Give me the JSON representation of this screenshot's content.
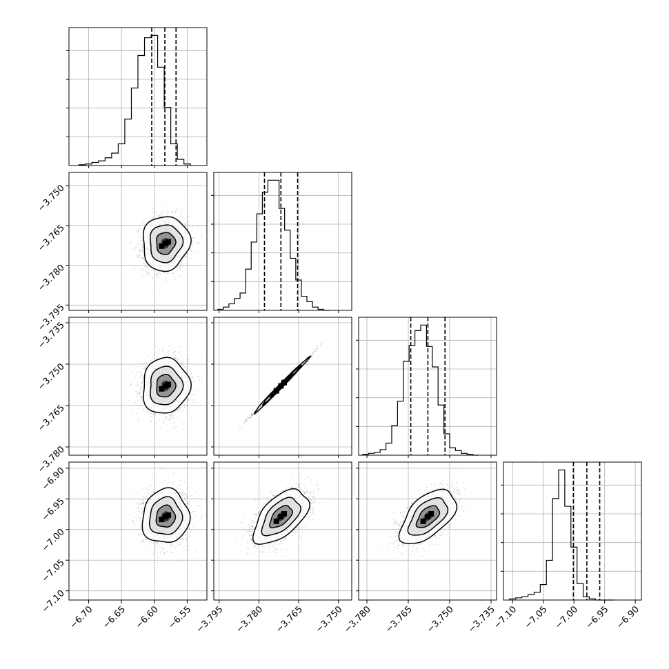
{
  "chart_data": {
    "type": "scatter",
    "subtype": "corner-plot",
    "grid": true,
    "parameters": [
      {
        "range": [
          -6.73,
          -6.52
        ],
        "ticks": [
          "-6.70",
          "-6.65",
          "-6.60",
          "-6.55"
        ],
        "quantiles": [
          -6.604,
          -6.584,
          -6.567
        ]
      },
      {
        "range": [
          -3.797,
          -3.745
        ],
        "ticks": [
          "-3.795",
          "-3.780",
          "-3.765",
          "-3.750"
        ],
        "quantiles": [
          -3.7779,
          -3.7717,
          -3.7654
        ]
      },
      {
        "range": [
          -3.783,
          -3.733
        ],
        "ticks": [
          "-3.780",
          "-3.765",
          "-3.750",
          "-3.735"
        ],
        "quantiles": [
          -3.7641,
          -3.7579,
          -3.7517
        ]
      },
      {
        "range": [
          -7.115,
          -6.89
        ],
        "ticks": [
          "-7.10",
          "-7.05",
          "-7.00",
          "-6.95",
          "-6.90"
        ],
        "quantiles": [
          -7.001,
          -6.979,
          -6.958
        ]
      }
    ],
    "histograms": [
      {
        "bin_start": -6.715,
        "bin_width": 0.01,
        "counts": [
          1,
          2,
          4,
          6,
          10,
          16,
          28,
          60,
          100,
          142,
          165,
          168,
          127,
          75,
          28,
          8,
          2
        ]
      },
      {
        "bin_start": -3.7955,
        "bin_width": 0.0021,
        "counts": [
          1,
          3,
          6,
          11,
          16,
          38,
          63,
          89,
          109,
          120,
          120,
          94,
          74,
          48,
          28,
          13,
          8,
          3,
          1,
          0
        ]
      },
      {
        "bin_start": -3.7815,
        "bin_width": 0.0021,
        "counts": [
          1,
          2,
          3,
          6,
          13,
          32,
          58,
          101,
          118,
          134,
          140,
          117,
          95,
          54,
          23,
          8,
          5,
          2,
          1,
          0
        ]
      },
      {
        "bin_start": -7.105,
        "bin_width": 0.01,
        "counts": [
          1,
          2,
          3,
          5,
          7,
          14,
          36,
          92,
          118,
          85,
          48,
          15,
          3,
          1,
          0,
          0,
          0
        ]
      }
    ],
    "pairs": [
      {
        "x": 0,
        "y": 1,
        "center": [
          -6.583,
          -3.7717
        ],
        "sd": [
          0.017,
          0.0049
        ],
        "rho": 0.05
      },
      {
        "x": 0,
        "y": 2,
        "center": [
          -6.583,
          -3.7579
        ],
        "sd": [
          0.017,
          0.0048
        ],
        "rho": 0.05
      },
      {
        "x": 0,
        "y": 3,
        "center": [
          -6.583,
          -6.979
        ],
        "sd": [
          0.017,
          0.021
        ],
        "rho": 0.05
      },
      {
        "x": 1,
        "y": 2,
        "center": [
          -3.7717,
          -3.7579
        ],
        "sd": [
          0.0049,
          0.0048
        ],
        "rho": 0.995
      },
      {
        "x": 1,
        "y": 3,
        "center": [
          -3.7717,
          -6.979
        ],
        "sd": [
          0.0049,
          0.021
        ],
        "rho": 0.55
      },
      {
        "x": 2,
        "y": 3,
        "center": [
          -3.7579,
          -6.979
        ],
        "sd": [
          0.0048,
          0.021
        ],
        "rho": 0.55
      }
    ]
  }
}
